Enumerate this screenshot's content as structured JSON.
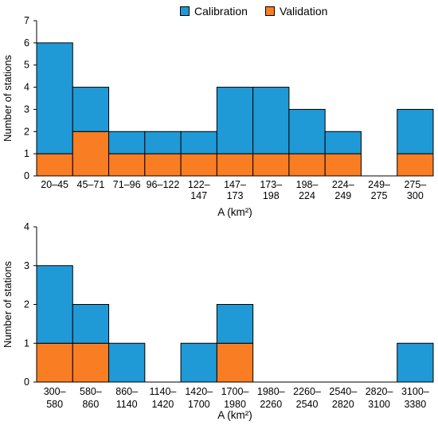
{
  "legend": {
    "calibration_label": "Calibration",
    "validation_label": "Validation"
  },
  "colors": {
    "calibration": "#1f9ad6",
    "validation": "#f97d23",
    "bar_stroke": "#000000",
    "axis": "#000000"
  },
  "chart_data": [
    {
      "type": "bar",
      "stacked": true,
      "categories": [
        [
          "20–45"
        ],
        [
          "45–71"
        ],
        [
          "71–96"
        ],
        [
          "96–122"
        ],
        [
          "122–",
          "147"
        ],
        [
          "147–",
          "173"
        ],
        [
          "173–",
          "198"
        ],
        [
          "198–",
          "224"
        ],
        [
          "224–",
          "249"
        ],
        [
          "249–",
          "275"
        ],
        [
          "275–",
          "300"
        ]
      ],
      "series": [
        {
          "name": "Validation",
          "values": [
            1,
            2,
            1,
            1,
            1,
            1,
            1,
            1,
            1,
            0,
            1
          ]
        },
        {
          "name": "Calibration",
          "values": [
            5,
            2,
            1,
            1,
            1,
            3,
            3,
            2,
            1,
            0,
            2
          ]
        }
      ],
      "xlabel": "A (km²)",
      "ylabel": "Number of stations",
      "ylim": [
        0,
        7
      ],
      "yticks": [
        0,
        1,
        2,
        3,
        4,
        5,
        6,
        7
      ],
      "grid": false,
      "legend_position": "top"
    },
    {
      "type": "bar",
      "stacked": true,
      "categories": [
        [
          "300–",
          "580"
        ],
        [
          "580–",
          "860"
        ],
        [
          "860–",
          "1140"
        ],
        [
          "1140–",
          "1420"
        ],
        [
          "1420–",
          "1700"
        ],
        [
          "1700–",
          "1980"
        ],
        [
          "1980–",
          "2260"
        ],
        [
          "2260–",
          "2540"
        ],
        [
          "2540–",
          "2820"
        ],
        [
          "2820–",
          "3100"
        ],
        [
          "3100–",
          "3380"
        ]
      ],
      "series": [
        {
          "name": "Validation",
          "values": [
            1,
            1,
            0,
            0,
            0,
            1,
            0,
            0,
            0,
            0,
            0
          ]
        },
        {
          "name": "Calibration",
          "values": [
            2,
            1,
            1,
            0,
            1,
            1,
            0,
            0,
            0,
            0,
            1
          ]
        }
      ],
      "xlabel": "A (km²)",
      "ylabel": "Number of stations",
      "ylim": [
        0,
        4
      ],
      "yticks": [
        0,
        1,
        2,
        3,
        4
      ],
      "grid": false
    }
  ]
}
